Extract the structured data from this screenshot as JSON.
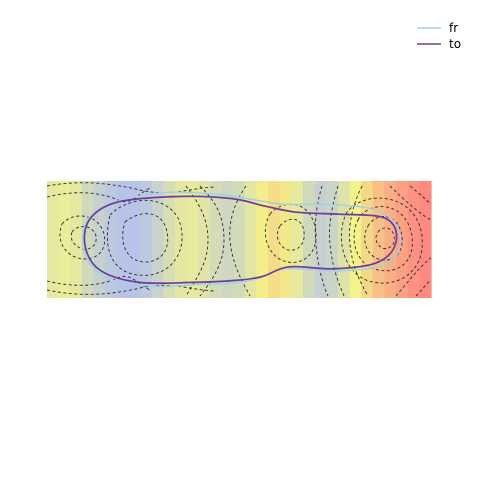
{
  "chart_data": {
    "type": "heatmap",
    "title": "",
    "xlabel": "",
    "ylabel": "",
    "axes_shown": false,
    "grid": false,
    "legend": {
      "placement": "top-right",
      "entries": [
        "fr",
        "to"
      ]
    },
    "colors": {
      "fr": "#a6cee3",
      "to": "#6a3d9a",
      "low": "#a8b8ff",
      "mid": "#f2f38a",
      "high": "#ff8080",
      "contour": "#2b2b2b"
    },
    "heatmap": {
      "x_range": [
        0,
        1
      ],
      "y_range": [
        0,
        0.3
      ],
      "columns": [
        0.41,
        0.44,
        0.41,
        0.28,
        0.2,
        0.14,
        0.1,
        0.1,
        0.14,
        0.22,
        0.32,
        0.4,
        0.42,
        0.38,
        0.3,
        0.26,
        0.3,
        0.4,
        0.52,
        0.6,
        0.55,
        0.42,
        0.28,
        0.2,
        0.24,
        0.36,
        0.5,
        0.62,
        0.72,
        0.8,
        0.86,
        0.92,
        0.96
      ]
    },
    "series": [
      {
        "name": "fr",
        "x": [
          0.4,
          0.28,
          0.16,
          0.1,
          0.1,
          0.16,
          0.3,
          0.45,
          0.55,
          0.62,
          0.72,
          0.84,
          0.9,
          0.92,
          0.91,
          0.86,
          0.76,
          0.62,
          0.55,
          0.48,
          0.4
        ],
        "y": [
          0.035,
          0.03,
          0.05,
          0.11,
          0.19,
          0.24,
          0.27,
          0.265,
          0.25,
          0.24,
          0.24,
          0.23,
          0.2,
          0.155,
          0.11,
          0.08,
          0.07,
          0.075,
          0.05,
          0.038,
          0.035
        ]
      },
      {
        "name": "to",
        "x": [
          0.38,
          0.24,
          0.14,
          0.1,
          0.11,
          0.18,
          0.33,
          0.48,
          0.57,
          0.65,
          0.76,
          0.86,
          0.9,
          0.91,
          0.89,
          0.84,
          0.74,
          0.63,
          0.56,
          0.49,
          0.38
        ],
        "y": [
          0.04,
          0.04,
          0.07,
          0.13,
          0.2,
          0.245,
          0.26,
          0.255,
          0.235,
          0.22,
          0.215,
          0.21,
          0.19,
          0.15,
          0.11,
          0.085,
          0.075,
          0.08,
          0.055,
          0.045,
          0.04
        ]
      }
    ]
  }
}
